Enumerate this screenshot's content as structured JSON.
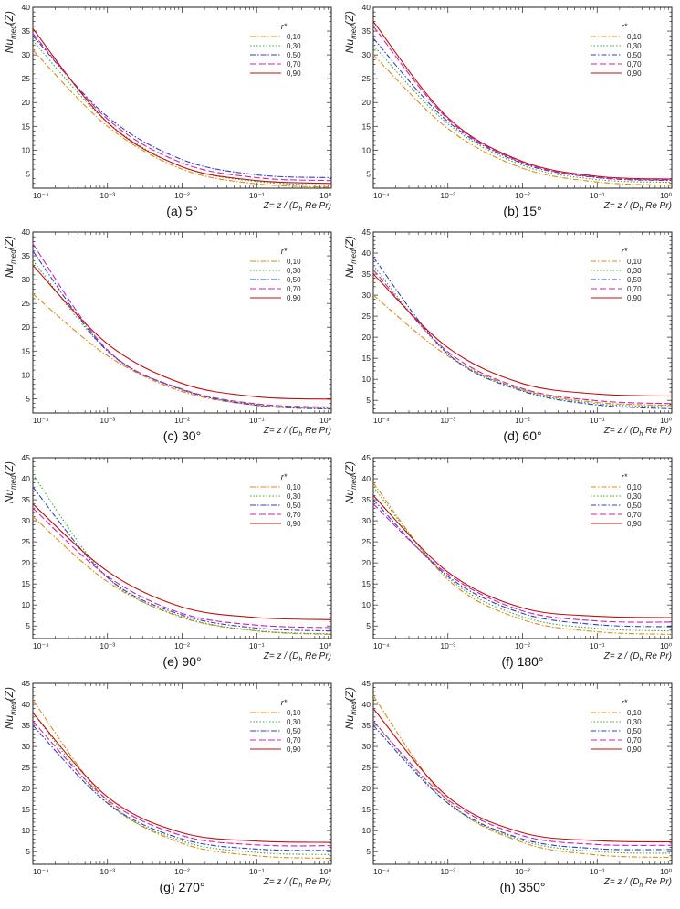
{
  "figure_title": "Nu_med(Z) vs Z for various inclination angles",
  "chart_data": [
    {
      "type": "line",
      "caption": "(a) 5°",
      "xscale": "log",
      "xlim": [
        0.0001,
        1
      ],
      "ylim": [
        2,
        40
      ],
      "yticks": [
        5,
        10,
        15,
        20,
        25,
        30,
        35,
        40
      ],
      "xticks": [
        "10⁻⁴",
        "10⁻³",
        "10⁻²",
        "10⁻¹",
        "10⁰"
      ],
      "ylabel_main": "Nu",
      "ylabel_sub": "med",
      "ylabel_tail": "(Z)",
      "xlabel": "Z= z / (D h Re Pr)",
      "xlabel_main": "Z= z / (D",
      "xlabel_sub": "h",
      "xlabel_tail": " Re Pr)",
      "legend_title": "r*",
      "series": [
        {
          "name": "0,10",
          "color": "#e08a10",
          "dash": "6,2,1.5,2",
          "values": [
            31,
            15,
            6.0,
            2.9,
            2.2
          ]
        },
        {
          "name": "0,30",
          "color": "#38a838",
          "dash": "1.5,2",
          "values": [
            33,
            15.8,
            6.5,
            3.4,
            2.6
          ]
        },
        {
          "name": "0,50",
          "color": "#3040c8",
          "dash": "6,2,1.5,2",
          "values": [
            34,
            17,
            8.0,
            4.8,
            4.2
          ]
        },
        {
          "name": "0,70",
          "color": "#d020b0",
          "dash": "7,3",
          "values": [
            34.5,
            16.5,
            7.3,
            4.2,
            3.6
          ]
        },
        {
          "name": "0,90",
          "color": "#c01010",
          "dash": "",
          "values": [
            35.5,
            15.8,
            6.5,
            3.6,
            3.0
          ]
        }
      ]
    },
    {
      "type": "line",
      "caption": "(b) 15°",
      "xscale": "log",
      "xlim": [
        0.0001,
        1
      ],
      "ylim": [
        2,
        40
      ],
      "yticks": [
        5,
        10,
        15,
        20,
        25,
        30,
        35,
        40
      ],
      "xticks": [
        "10⁻⁴",
        "10⁻³",
        "10⁻²",
        "10⁻¹",
        "10⁰"
      ],
      "ylabel_main": "Nu",
      "ylabel_sub": "med",
      "ylabel_tail": "(Z)",
      "xlabel": "Z= z / (D h Re Pr)",
      "xlabel_main": "Z= z / (D",
      "xlabel_sub": "h",
      "xlabel_tail": " Re Pr)",
      "legend_title": "r*",
      "series": [
        {
          "name": "0,10",
          "color": "#e08a10",
          "dash": "6,2,1.5,2",
          "values": [
            30,
            14.5,
            6.2,
            3.3,
            2.6
          ]
        },
        {
          "name": "0,30",
          "color": "#38a838",
          "dash": "1.5,2",
          "values": [
            32,
            15.5,
            6.8,
            3.8,
            3.2
          ]
        },
        {
          "name": "0,50",
          "color": "#3040c8",
          "dash": "6,2,1.5,2",
          "values": [
            33.5,
            16,
            7.2,
            4.2,
            3.6
          ]
        },
        {
          "name": "0,70",
          "color": "#d020b0",
          "dash": "7,3",
          "values": [
            36,
            16.5,
            7.4,
            4.3,
            3.7
          ]
        },
        {
          "name": "0,90",
          "color": "#c01010",
          "dash": "",
          "values": [
            37,
            16.8,
            7.6,
            4.5,
            3.9
          ]
        }
      ]
    },
    {
      "type": "line",
      "caption": "(c) 30°",
      "xscale": "log",
      "xlim": [
        0.0001,
        1
      ],
      "ylim": [
        2,
        40
      ],
      "yticks": [
        5,
        10,
        15,
        20,
        25,
        30,
        35,
        40
      ],
      "xticks": [
        "10⁻⁴",
        "10⁻³",
        "10⁻²",
        "10⁻¹",
        "10⁰"
      ],
      "ylabel_main": "Nu",
      "ylabel_sub": "med",
      "ylabel_tail": "(Z)",
      "xlabel": "Z= z / (D h Re Pr)",
      "xlabel_main": "Z= z / (D",
      "xlabel_sub": "h",
      "xlabel_tail": " Re Pr)",
      "legend_title": "r*",
      "series": [
        {
          "name": "0,10",
          "color": "#e08a10",
          "dash": "6,2,1.5,2",
          "values": [
            27,
            14,
            6.5,
            3.6,
            2.9
          ]
        },
        {
          "name": "0,30",
          "color": "#38a838",
          "dash": "1.5,2",
          "values": [
            34,
            15,
            6.8,
            3.8,
            3.0
          ]
        },
        {
          "name": "0,50",
          "color": "#3040c8",
          "dash": "6,2,1.5,2",
          "values": [
            36,
            15,
            6.9,
            3.6,
            2.8
          ]
        },
        {
          "name": "0,70",
          "color": "#d020b0",
          "dash": "7,3",
          "values": [
            37.5,
            15.2,
            7.0,
            3.9,
            3.2
          ]
        },
        {
          "name": "0,90",
          "color": "#c01010",
          "dash": "",
          "values": [
            33,
            16.5,
            8.2,
            5.4,
            4.9
          ]
        }
      ]
    },
    {
      "type": "line",
      "caption": "(d) 60°",
      "xscale": "log",
      "xlim": [
        0.0001,
        1
      ],
      "ylim": [
        2,
        45
      ],
      "yticks": [
        5,
        10,
        15,
        20,
        25,
        30,
        35,
        40,
        45
      ],
      "xticks": [
        "10⁻⁴",
        "10⁻³",
        "10⁻²",
        "10⁻¹",
        "10⁰"
      ],
      "ylabel_main": "Nu",
      "ylabel_sub": "med",
      "ylabel_tail": "(Z)",
      "xlabel": "Z= z / (D h Re Pr)",
      "xlabel_main": "Z= z / (D",
      "xlabel_sub": "h",
      "xlabel_tail": " Re Pr)",
      "legend_title": "r*",
      "series": [
        {
          "name": "0,10",
          "color": "#e08a10",
          "dash": "6,2,1.5,2",
          "values": [
            30,
            15.5,
            7.5,
            4.5,
            3.8
          ]
        },
        {
          "name": "0,30",
          "color": "#38a838",
          "dash": "1.5,2",
          "values": [
            37,
            16,
            7.4,
            4.2,
            3.5
          ]
        },
        {
          "name": "0,50",
          "color": "#3040c8",
          "dash": "6,2,1.5,2",
          "values": [
            39,
            16,
            7.2,
            3.9,
            3.0
          ]
        },
        {
          "name": "0,70",
          "color": "#d020b0",
          "dash": "7,3",
          "values": [
            36,
            16.5,
            7.8,
            4.9,
            4.2
          ]
        },
        {
          "name": "0,90",
          "color": "#c01010",
          "dash": "",
          "values": [
            35,
            17.5,
            9.0,
            6.5,
            6.0
          ]
        }
      ]
    },
    {
      "type": "line",
      "caption": "(e) 90°",
      "xscale": "log",
      "xlim": [
        0.0001,
        1
      ],
      "ylim": [
        2,
        45
      ],
      "yticks": [
        5,
        10,
        15,
        20,
        25,
        30,
        35,
        40,
        45
      ],
      "xticks": [
        "10⁻⁴",
        "10⁻³",
        "10⁻²",
        "10⁻¹",
        "10⁰"
      ],
      "ylabel_main": "Nu",
      "ylabel_sub": "med",
      "ylabel_tail": "(Z)",
      "xlabel": "Z= z / (D h Re Pr)",
      "xlabel_main": "Z= z / (D",
      "xlabel_sub": "h",
      "xlabel_tail": " Re Pr)",
      "legend_title": "r*",
      "series": [
        {
          "name": "0,10",
          "color": "#e08a10",
          "dash": "6,2,1.5,2",
          "values": [
            31,
            15.5,
            7.0,
            3.8,
            3.0
          ]
        },
        {
          "name": "0,30",
          "color": "#38a838",
          "dash": "1.5,2",
          "values": [
            41,
            16.5,
            7.2,
            3.9,
            3.1
          ]
        },
        {
          "name": "0,50",
          "color": "#3040c8",
          "dash": "6,2,1.5,2",
          "values": [
            38,
            16.5,
            7.6,
            4.5,
            3.8
          ]
        },
        {
          "name": "0,70",
          "color": "#d020b0",
          "dash": "7,3",
          "values": [
            33,
            16.8,
            8.0,
            5.2,
            4.6
          ]
        },
        {
          "name": "0,90",
          "color": "#c01010",
          "dash": "",
          "values": [
            34,
            18,
            9.5,
            7.0,
            6.5
          ]
        }
      ]
    },
    {
      "type": "line",
      "caption": "(f) 180°",
      "xscale": "log",
      "xlim": [
        0.0001,
        1
      ],
      "ylim": [
        2,
        45
      ],
      "yticks": [
        5,
        10,
        15,
        20,
        25,
        30,
        35,
        40,
        45
      ],
      "xticks": [
        "10⁻⁴",
        "10⁻³",
        "10⁻²",
        "10⁻¹",
        "10⁰"
      ],
      "ylabel_main": "Nu",
      "ylabel_sub": "med",
      "ylabel_tail": "(Z)",
      "xlabel": "Z= z / (D h Re Pr)",
      "xlabel_main": "Z= z / (D",
      "xlabel_sub": "h",
      "xlabel_tail": " Re Pr)",
      "legend_title": "r*",
      "series": [
        {
          "name": "0,10",
          "color": "#e08a10",
          "dash": "6,2,1.5,2",
          "values": [
            39,
            16,
            6.5,
            3.6,
            3.0
          ]
        },
        {
          "name": "0,30",
          "color": "#38a838",
          "dash": "1.5,2",
          "values": [
            38,
            16.5,
            7.2,
            4.4,
            3.8
          ]
        },
        {
          "name": "0,50",
          "color": "#3040c8",
          "dash": "6,2,1.5,2",
          "values": [
            35,
            16.8,
            8.0,
            5.3,
            4.8
          ]
        },
        {
          "name": "0,70",
          "color": "#d020b0",
          "dash": "7,3",
          "values": [
            34,
            17.3,
            8.6,
            6.2,
            5.9
          ]
        },
        {
          "name": "0,90",
          "color": "#c01010",
          "dash": "",
          "values": [
            36,
            17.8,
            9.3,
            7.3,
            7.0
          ]
        }
      ]
    },
    {
      "type": "line",
      "caption": "(g) 270°",
      "xscale": "log",
      "xlim": [
        0.0001,
        1
      ],
      "ylim": [
        2,
        45
      ],
      "yticks": [
        5,
        10,
        15,
        20,
        25,
        30,
        35,
        40,
        45
      ],
      "xticks": [
        "10⁻⁴",
        "10⁻³",
        "10⁻²",
        "10⁻¹",
        "10⁰"
      ],
      "ylabel_main": "Nu",
      "ylabel_sub": "med",
      "ylabel_tail": "(Z)",
      "xlabel": "Z= z / (D h Re Pr)",
      "xlabel_main": "Z= z / (D",
      "xlabel_sub": "h",
      "xlabel_tail": " Re Pr)",
      "legend_title": "r*",
      "series": [
        {
          "name": "0,10",
          "color": "#e08a10",
          "dash": "6,2,1.5,2",
          "values": [
            41,
            17,
            7.0,
            4.0,
            3.4
          ]
        },
        {
          "name": "0,30",
          "color": "#38a838",
          "dash": "1.5,2",
          "values": [
            38,
            16.5,
            7.5,
            4.8,
            4.3
          ]
        },
        {
          "name": "0,50",
          "color": "#3040c8",
          "dash": "6,2,1.5,2",
          "values": [
            35,
            16.5,
            8.0,
            5.6,
            5.3
          ]
        },
        {
          "name": "0,70",
          "color": "#d020b0",
          "dash": "7,3",
          "values": [
            36,
            17.3,
            8.8,
            6.6,
            6.4
          ]
        },
        {
          "name": "0,90",
          "color": "#c01010",
          "dash": "",
          "values": [
            38,
            18,
            9.5,
            7.5,
            7.2
          ]
        }
      ]
    },
    {
      "type": "line",
      "caption": "(h) 350°",
      "xscale": "log",
      "xlim": [
        0.0001,
        1
      ],
      "ylim": [
        2,
        45
      ],
      "yticks": [
        5,
        10,
        15,
        20,
        25,
        30,
        35,
        40,
        45
      ],
      "xticks": [
        "10⁻⁴",
        "10⁻³",
        "10⁻²",
        "10⁻¹",
        "10⁰"
      ],
      "ylabel_main": "Nu",
      "ylabel_sub": "med",
      "ylabel_tail": "(Z)",
      "xlabel": "Z= z / (D h Re Pr)",
      "xlabel_main": "Z= z / (D",
      "xlabel_sub": "h",
      "xlabel_tail": " Re Pr)",
      "legend_title": "r*",
      "series": [
        {
          "name": "0,10",
          "color": "#e08a10",
          "dash": "6,2,1.5,2",
          "values": [
            42,
            17,
            7.2,
            4.2,
            3.6
          ]
        },
        {
          "name": "0,30",
          "color": "#38a838",
          "dash": "1.5,2",
          "values": [
            36,
            16.5,
            7.6,
            5.0,
            4.6
          ]
        },
        {
          "name": "0,50",
          "color": "#3040c8",
          "dash": "6,2,1.5,2",
          "values": [
            35,
            16.5,
            8.0,
            5.7,
            5.5
          ]
        },
        {
          "name": "0,70",
          "color": "#d020b0",
          "dash": "7,3",
          "values": [
            36,
            17.3,
            8.8,
            6.7,
            6.5
          ]
        },
        {
          "name": "0,90",
          "color": "#c01010",
          "dash": "",
          "values": [
            39,
            18,
            9.5,
            7.6,
            7.3
          ]
        }
      ]
    }
  ]
}
